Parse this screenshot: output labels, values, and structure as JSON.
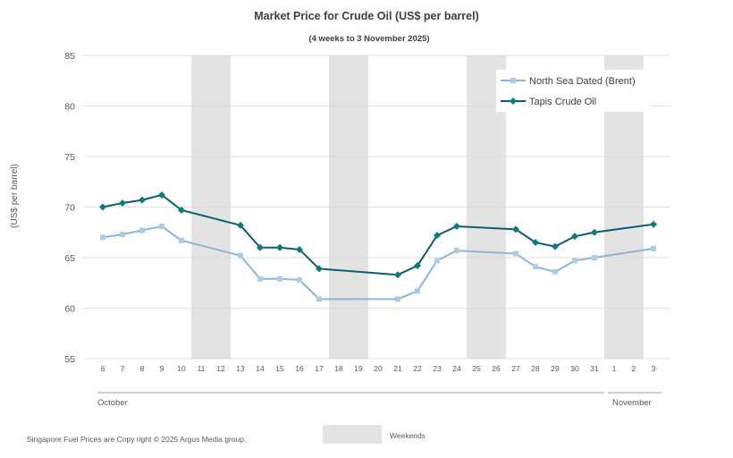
{
  "chart_data": {
    "type": "line",
    "title": "Market Price for Crude  Oil (US$ per barrel)",
    "subtitle": "(4 weeks to 3 November 2025)",
    "ylabel": "(US$ per barrel)",
    "xlabel": "",
    "ylim": [
      55,
      85
    ],
    "yticks": [
      55,
      60,
      65,
      70,
      75,
      80,
      85
    ],
    "grid": true,
    "categories": [
      "6",
      "7",
      "8",
      "9",
      "10",
      "11",
      "12",
      "13",
      "14",
      "15",
      "16",
      "17",
      "18",
      "19",
      "20",
      "21",
      "22",
      "23",
      "24",
      "25",
      "26",
      "27",
      "28",
      "29",
      "30",
      "31",
      "1",
      "2",
      "3"
    ],
    "weekend_spans": [
      [
        "11",
        "12"
      ],
      [
        "18",
        "19"
      ],
      [
        "25",
        "26"
      ],
      [
        "1",
        "2"
      ]
    ],
    "series": [
      {
        "name": "North Sea Dated (Brent)",
        "color": "#8fb6d0",
        "marker": "square",
        "marker_color": "#a9cde8",
        "values": [
          67.0,
          67.3,
          67.7,
          68.1,
          66.7,
          null,
          null,
          65.2,
          62.9,
          62.9,
          62.8,
          60.9,
          null,
          null,
          null,
          60.9,
          61.7,
          64.7,
          65.7,
          null,
          null,
          65.4,
          64.1,
          63.6,
          64.7,
          65.0,
          null,
          null,
          65.9
        ]
      },
      {
        "name": "Tapis Crude Oil",
        "color": "#0b5e6e",
        "marker": "diamond",
        "marker_color": "#0e7a7c",
        "values": [
          70.0,
          70.4,
          70.7,
          71.2,
          69.7,
          null,
          null,
          68.2,
          66.0,
          66.0,
          65.8,
          63.9,
          null,
          null,
          null,
          63.3,
          64.2,
          67.2,
          68.1,
          null,
          null,
          67.8,
          66.5,
          66.1,
          67.1,
          67.5,
          null,
          null,
          68.3
        ]
      }
    ],
    "months": [
      {
        "label": "October",
        "start": "6",
        "end": "31"
      },
      {
        "label": "November",
        "start": "1",
        "end": "3"
      }
    ],
    "legend_position": "top-right"
  },
  "weekend_legend": {
    "label": "Weekends",
    "color": "#e3e3e3"
  },
  "footer": {
    "copyright": "Singapore  Fuel Prices are  Copy right © 2025 Argus Media group."
  },
  "colors": {
    "grid": "#d9d9d9",
    "axis_text": "#595959"
  }
}
